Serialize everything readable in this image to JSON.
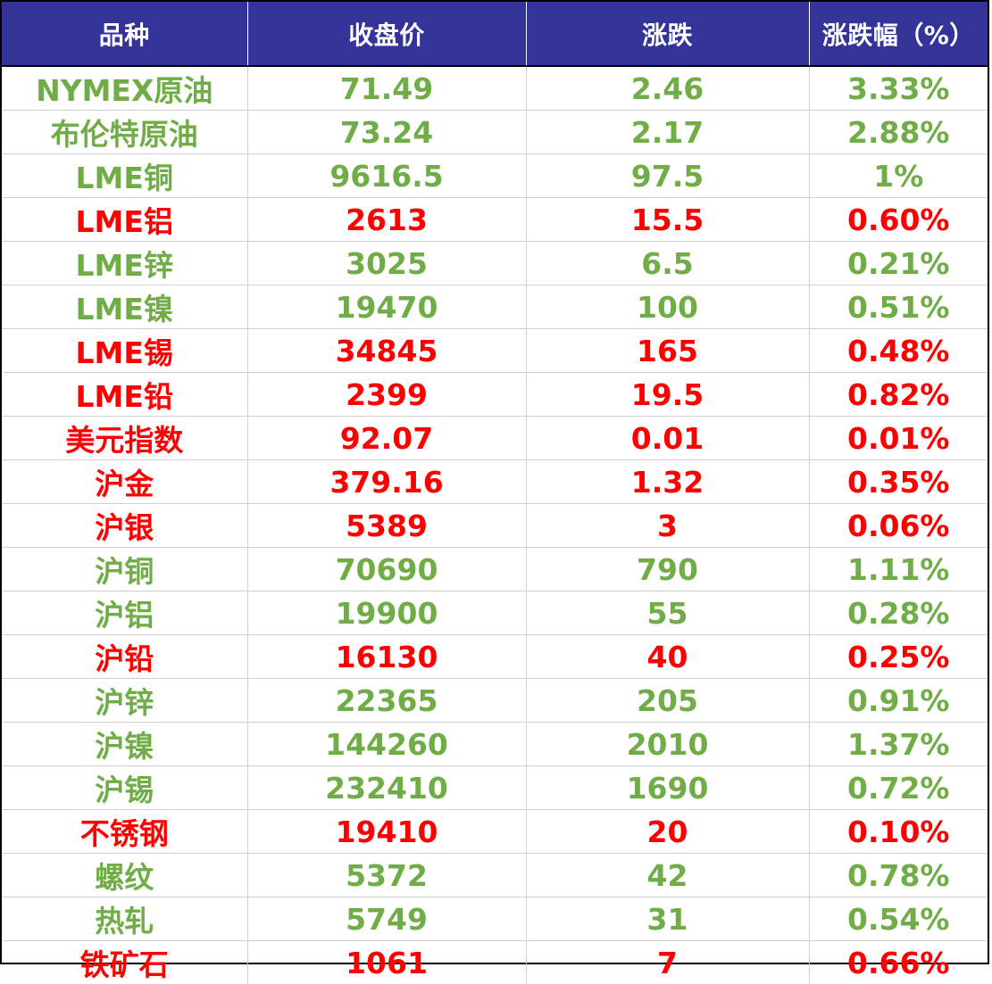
{
  "colors": {
    "header_bg": "#333399",
    "header_text": "#ffffff",
    "up_red": "#ff0000",
    "down_green": "#70ad47"
  },
  "table": {
    "headers": [
      "品种",
      "收盘价",
      "涨跌",
      "涨跌幅（%）"
    ],
    "rows": [
      {
        "name": "NYMEX原油",
        "close": "71.49",
        "change": "2.46",
        "pct": "3.33%",
        "color": "green"
      },
      {
        "name": "布伦特原油",
        "close": "73.24",
        "change": "2.17",
        "pct": "2.88%",
        "color": "green"
      },
      {
        "name": "LME铜",
        "close": "9616.5",
        "change": "97.5",
        "pct": "1%",
        "color": "green"
      },
      {
        "name": "LME铝",
        "close": "2613",
        "change": "15.5",
        "pct": "0.60%",
        "color": "red"
      },
      {
        "name": "LME锌",
        "close": "3025",
        "change": "6.5",
        "pct": "0.21%",
        "color": "green"
      },
      {
        "name": "LME镍",
        "close": "19470",
        "change": "100",
        "pct": "0.51%",
        "color": "green"
      },
      {
        "name": "LME锡",
        "close": "34845",
        "change": "165",
        "pct": "0.48%",
        "color": "red"
      },
      {
        "name": "LME铅",
        "close": "2399",
        "change": "19.5",
        "pct": "0.82%",
        "color": "red"
      },
      {
        "name": "美元指数",
        "close": "92.07",
        "change": "0.01",
        "pct": "0.01%",
        "color": "red"
      },
      {
        "name": "沪金",
        "close": "379.16",
        "change": "1.32",
        "pct": "0.35%",
        "color": "red"
      },
      {
        "name": "沪银",
        "close": "5389",
        "change": "3",
        "pct": "0.06%",
        "color": "red"
      },
      {
        "name": "沪铜",
        "close": "70690",
        "change": "790",
        "pct": "1.11%",
        "color": "green"
      },
      {
        "name": "沪铝",
        "close": "19900",
        "change": "55",
        "pct": "0.28%",
        "color": "green"
      },
      {
        "name": "沪铅",
        "close": "16130",
        "change": "40",
        "pct": "0.25%",
        "color": "red"
      },
      {
        "name": "沪锌",
        "close": "22365",
        "change": "205",
        "pct": "0.91%",
        "color": "green"
      },
      {
        "name": "沪镍",
        "close": "144260",
        "change": "2010",
        "pct": "1.37%",
        "color": "green"
      },
      {
        "name": "沪锡",
        "close": "232410",
        "change": "1690",
        "pct": "0.72%",
        "color": "green"
      },
      {
        "name": "不锈钢",
        "close": "19410",
        "change": "20",
        "pct": "0.10%",
        "color": "red"
      },
      {
        "name": "螺纹",
        "close": "5372",
        "change": "42",
        "pct": "0.78%",
        "color": "green"
      },
      {
        "name": "热轧",
        "close": "5749",
        "change": "31",
        "pct": "0.54%",
        "color": "green"
      },
      {
        "name": "铁矿石",
        "close": "1061",
        "change": "7",
        "pct": "0.66%",
        "color": "red"
      }
    ]
  }
}
